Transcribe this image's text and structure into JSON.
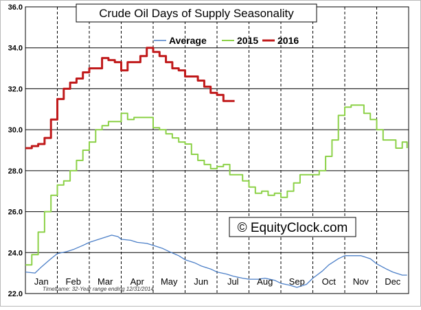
{
  "chart_data": {
    "type": "line",
    "title": "Crude Oil Days of Supply Seasonality",
    "watermark": "© EquityClock.com",
    "footnote": "Timeframe: 32-Year range ending 12/31/2014",
    "xlabel": "",
    "ylabel": "",
    "ylim": [
      22.0,
      36.0
    ],
    "yticks": [
      "22.0",
      "24.0",
      "26.0",
      "28.0",
      "30.0",
      "32.0",
      "34.0",
      "36.0"
    ],
    "x_tick_labels": [
      "Jan",
      "Feb",
      "Mar",
      "Apr",
      "May",
      "Jun",
      "Jul",
      "Aug",
      "Sep",
      "Oct",
      "Nov",
      "Dec"
    ],
    "xlim": [
      0,
      12
    ],
    "grid": true,
    "legend_position": "top",
    "series": [
      {
        "name": "Average",
        "color": "#4a7ec7",
        "style": "smooth",
        "x": [
          0.0,
          0.3,
          0.5,
          0.8,
          1.0,
          1.3,
          1.5,
          1.8,
          2.0,
          2.3,
          2.5,
          2.7,
          2.9,
          3.0,
          3.3,
          3.5,
          3.8,
          4.0,
          4.3,
          4.5,
          4.8,
          5.0,
          5.3,
          5.5,
          5.8,
          6.0,
          6.3,
          6.5,
          6.8,
          7.0,
          7.3,
          7.5,
          7.8,
          8.0,
          8.3,
          8.5,
          8.8,
          9.0,
          9.3,
          9.5,
          9.8,
          10.0,
          10.3,
          10.5,
          10.8,
          11.0,
          11.3,
          11.5,
          11.8,
          11.95
        ],
        "y": [
          23.05,
          23.0,
          23.3,
          23.7,
          23.95,
          24.05,
          24.15,
          24.35,
          24.5,
          24.65,
          24.75,
          24.85,
          24.78,
          24.65,
          24.6,
          24.5,
          24.45,
          24.35,
          24.2,
          24.05,
          23.85,
          23.65,
          23.5,
          23.35,
          23.2,
          23.05,
          22.95,
          22.85,
          22.75,
          22.7,
          22.7,
          22.75,
          22.65,
          22.5,
          22.4,
          22.3,
          22.45,
          22.75,
          23.1,
          23.4,
          23.7,
          23.85,
          23.85,
          23.85,
          23.7,
          23.45,
          23.2,
          23.05,
          22.9,
          22.9
        ]
      },
      {
        "name": "2015",
        "color": "#8cd147",
        "style": "step",
        "x": [
          0.0,
          0.2,
          0.4,
          0.6,
          0.8,
          1.0,
          1.2,
          1.4,
          1.6,
          1.8,
          2.0,
          2.2,
          2.4,
          2.6,
          2.8,
          3.0,
          3.2,
          3.4,
          3.6,
          3.8,
          4.0,
          4.2,
          4.4,
          4.6,
          4.8,
          5.0,
          5.2,
          5.4,
          5.6,
          5.8,
          6.0,
          6.2,
          6.4,
          6.6,
          6.8,
          7.0,
          7.2,
          7.4,
          7.6,
          7.8,
          8.0,
          8.2,
          8.4,
          8.6,
          8.8,
          9.0,
          9.2,
          9.4,
          9.6,
          9.8,
          10.0,
          10.2,
          10.4,
          10.6,
          10.8,
          11.0,
          11.2,
          11.4,
          11.6,
          11.8,
          11.95
        ],
        "y": [
          23.4,
          23.9,
          25.0,
          26.0,
          26.8,
          27.3,
          27.5,
          28.0,
          28.5,
          29.0,
          29.4,
          30.0,
          30.2,
          30.4,
          30.4,
          30.8,
          30.5,
          30.6,
          30.6,
          30.6,
          30.1,
          30.0,
          29.8,
          29.6,
          29.4,
          29.3,
          28.8,
          28.5,
          28.3,
          28.1,
          28.2,
          28.3,
          27.8,
          27.8,
          27.5,
          27.2,
          26.9,
          27.0,
          26.8,
          26.9,
          26.7,
          27.0,
          27.4,
          27.8,
          27.8,
          27.8,
          28.0,
          28.7,
          29.5,
          30.7,
          31.1,
          31.2,
          31.2,
          30.8,
          30.5,
          30.0,
          29.5,
          29.5,
          29.1,
          29.4,
          29.1
        ]
      },
      {
        "name": "2016",
        "color": "#c0191a",
        "style": "step",
        "x": [
          0.0,
          0.2,
          0.4,
          0.6,
          0.8,
          1.0,
          1.2,
          1.4,
          1.6,
          1.8,
          2.0,
          2.2,
          2.4,
          2.6,
          2.8,
          3.0,
          3.2,
          3.4,
          3.6,
          3.8,
          4.0,
          4.2,
          4.4,
          4.6,
          4.8,
          5.0,
          5.2,
          5.4,
          5.6,
          5.8,
          6.0,
          6.2,
          6.4,
          6.55
        ],
        "y": [
          29.1,
          29.2,
          29.3,
          29.6,
          30.5,
          31.5,
          32.0,
          32.3,
          32.5,
          32.8,
          33.0,
          33.0,
          33.5,
          33.4,
          33.3,
          32.9,
          33.3,
          33.3,
          33.6,
          34.0,
          33.8,
          33.6,
          33.3,
          33.0,
          32.9,
          32.6,
          32.6,
          32.4,
          32.1,
          31.8,
          31.7,
          31.4,
          31.4,
          31.4
        ]
      }
    ]
  }
}
